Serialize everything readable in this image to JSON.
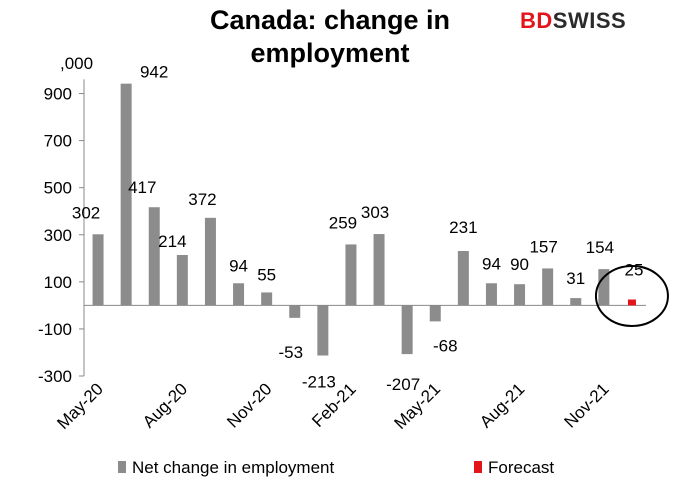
{
  "brand": {
    "part1": "BD",
    "part2": "SWISS",
    "color_primary": "#e4141b",
    "color_secondary": "#2b2b2b"
  },
  "chart_data": {
    "type": "bar",
    "title": "Canada: change in employment",
    "unit_label": ",000",
    "ylim": [
      -300,
      1000
    ],
    "yticks": [
      -300,
      -100,
      100,
      300,
      500,
      700,
      900
    ],
    "xtick_labels": [
      "May-20",
      "Aug-20",
      "Nov-20",
      "Feb-21",
      "May-21",
      "Aug-21",
      "Nov-21"
    ],
    "categories": [
      "May-20",
      "Jun-20",
      "Jul-20",
      "Aug-20",
      "Sep-20",
      "Oct-20",
      "Nov-20",
      "Dec-20",
      "Jan-21",
      "Feb-21",
      "Mar-21",
      "Apr-21",
      "May-21",
      "Jun-21",
      "Jul-21",
      "Aug-21",
      "Sep-21",
      "Oct-21",
      "Nov-21",
      "Dec-21"
    ],
    "series": [
      {
        "name": "Net change in employment",
        "color": "#8c8c8c",
        "values": [
          302,
          942,
          417,
          214,
          372,
          94,
          55,
          -53,
          -213,
          259,
          303,
          -207,
          -68,
          231,
          94,
          90,
          157,
          31,
          154,
          null
        ]
      },
      {
        "name": "Forecast",
        "color": "#e4141b",
        "values": [
          null,
          null,
          null,
          null,
          null,
          null,
          null,
          null,
          null,
          null,
          null,
          null,
          null,
          null,
          null,
          null,
          null,
          null,
          null,
          25
        ]
      }
    ],
    "data_labels": [
      "302",
      "942",
      "417",
      "214",
      "372",
      "94",
      "55",
      "-53",
      "-213",
      "259",
      "303",
      "-207",
      "-68",
      "231",
      "94",
      "90",
      "157",
      "31",
      "154",
      "25"
    ],
    "grid": false,
    "legend_position": "bottom",
    "annotation": "circle-around-forecast"
  }
}
